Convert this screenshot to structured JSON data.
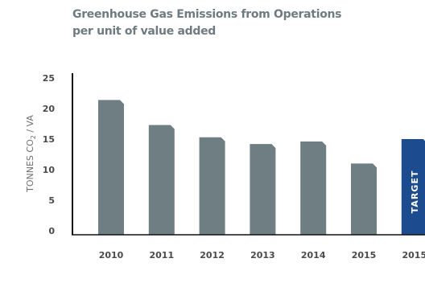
{
  "chart_data": {
    "type": "bar",
    "title_lines": [
      "Greenhouse Gas Emissions from Operations",
      "per unit of value added"
    ],
    "ylabel": {
      "prefix": "TONNES CO",
      "subscript": "2",
      "suffix": " / VA"
    },
    "ylim": [
      0,
      25
    ],
    "yticks": [
      0,
      5,
      10,
      15,
      20,
      25
    ],
    "categories": [
      "2010",
      "2011",
      "2012",
      "2013",
      "2014",
      "2015",
      "2015"
    ],
    "values": [
      21.4,
      17.3,
      15.3,
      14.2,
      14.6,
      11.0,
      15.0
    ],
    "bar_labels": [
      "",
      "",
      "",
      "",
      "",
      "",
      "TARGET"
    ],
    "colors": [
      "#6e7e83",
      "#6e7e83",
      "#6e7e83",
      "#6e7e83",
      "#6e7e83",
      "#6e7e83",
      "#1d4b8f"
    ],
    "grid": false,
    "legend": "none"
  }
}
